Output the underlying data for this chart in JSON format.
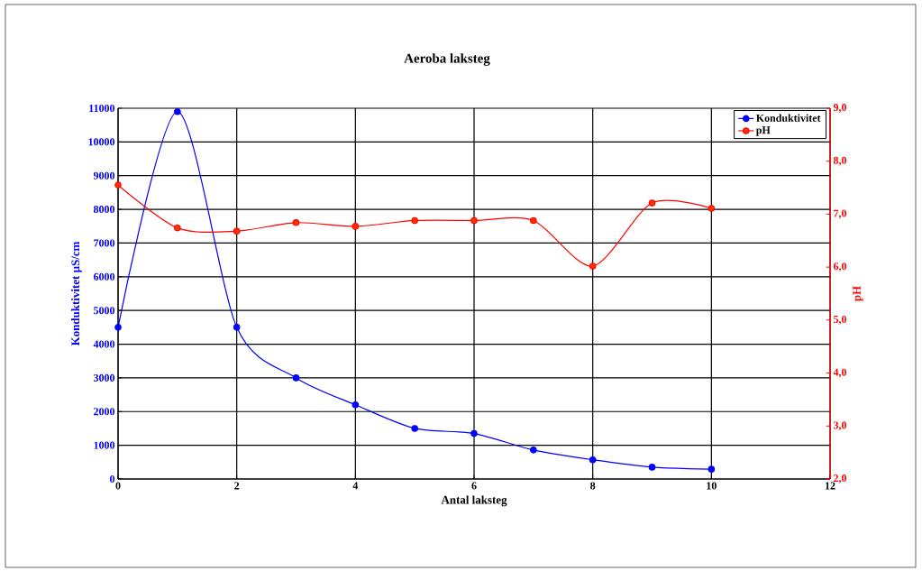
{
  "chart_data": {
    "type": "line",
    "title": "Aeroba laksteg",
    "xlabel": "Antal laksteg",
    "ylabel": "Konduktivitet µS/cm",
    "y2label": "pH",
    "x": [
      0,
      1,
      2,
      3,
      4,
      5,
      6,
      7,
      8,
      9,
      10
    ],
    "xlim": [
      0,
      12
    ],
    "xticks": [
      0,
      2,
      4,
      6,
      8,
      10,
      12
    ],
    "ylim": [
      0,
      11000
    ],
    "yticks": [
      0,
      1000,
      2000,
      3000,
      4000,
      5000,
      6000,
      7000,
      8000,
      9000,
      10000,
      11000
    ],
    "y2lim": [
      2,
      9
    ],
    "y2ticks": [
      {
        "value": 2,
        "label": "2,0"
      },
      {
        "value": 3,
        "label": "3,0"
      },
      {
        "value": 4,
        "label": "4,0"
      },
      {
        "value": 5,
        "label": "5,0"
      },
      {
        "value": 6,
        "label": "6,0"
      },
      {
        "value": 7,
        "label": "7,0"
      },
      {
        "value": 8,
        "label": "8,0"
      },
      {
        "value": 9,
        "label": "9,0"
      }
    ],
    "grid": true,
    "legend": "top right",
    "marker": "circle",
    "line_style": "solid",
    "series": [
      {
        "name": "Konduktivitet",
        "color": "#0000ff",
        "values": [
          4500,
          10900,
          4500,
          3000,
          2200,
          1500,
          1350,
          860,
          570,
          350,
          290
        ]
      },
      {
        "name": "pH",
        "color": "#ff0000",
        "axis": "y2",
        "values": [
          7.55,
          6.74,
          6.68,
          6.84,
          6.77,
          6.88,
          6.88,
          6.88,
          6.02,
          7.21,
          7.11
        ]
      }
    ]
  }
}
